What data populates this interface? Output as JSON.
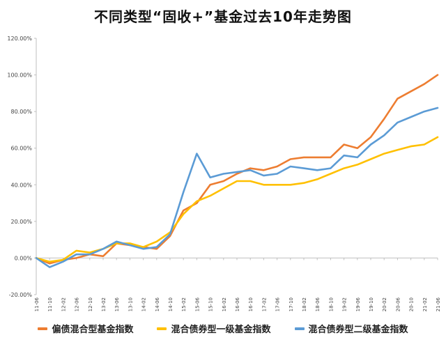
{
  "chart_data": {
    "type": "line",
    "title": "不同类型“固收+”基金过去10年走势图",
    "xlabel": "",
    "ylabel": "",
    "ylim": [
      -0.2,
      1.2
    ],
    "yticks": [
      -0.2,
      0.0,
      0.2,
      0.4,
      0.6,
      0.8,
      1.0,
      1.2
    ],
    "ytick_labels": [
      "-20.00%",
      "0.00%",
      "20.00%",
      "40.00%",
      "60.00%",
      "80.00%",
      "100.00%",
      "120.00%"
    ],
    "x_tick_labels": [
      "11-06",
      "11-10",
      "12-02",
      "12-06",
      "12-10",
      "13-02",
      "13-06",
      "13-10",
      "14-02",
      "14-06",
      "14-10",
      "15-02",
      "15-06",
      "15-10",
      "16-02",
      "16-06",
      "16-10",
      "17-02",
      "17-06",
      "17-10",
      "18-02",
      "18-06",
      "18-10",
      "19-02",
      "19-06",
      "19-10",
      "20-02",
      "20-06",
      "20-10",
      "21-02",
      "21-06"
    ],
    "grid": false,
    "legend_position": "bottom",
    "series": [
      {
        "name": "偏债混合型基金指数",
        "color": "#ED7D31",
        "values": [
          0.0,
          -0.03,
          -0.01,
          0.0,
          0.02,
          0.01,
          0.08,
          0.07,
          0.06,
          0.05,
          0.12,
          0.26,
          0.3,
          0.4,
          0.42,
          0.46,
          0.49,
          0.48,
          0.5,
          0.54,
          0.55,
          0.55,
          0.55,
          0.62,
          0.6,
          0.66,
          0.76,
          0.87,
          0.91,
          0.95,
          1.0
        ]
      },
      {
        "name": "混合债券型一级基金指数",
        "color": "#FFC000",
        "values": [
          0.0,
          -0.02,
          -0.01,
          0.04,
          0.03,
          0.05,
          0.08,
          0.08,
          0.06,
          0.09,
          0.14,
          0.24,
          0.31,
          0.34,
          0.38,
          0.42,
          0.42,
          0.4,
          0.4,
          0.4,
          0.41,
          0.43,
          0.46,
          0.49,
          0.51,
          0.54,
          0.57,
          0.59,
          0.61,
          0.62,
          0.66
        ]
      },
      {
        "name": "混合债券型二级基金指数",
        "color": "#5B9BD5",
        "values": [
          0.0,
          -0.05,
          -0.02,
          0.02,
          0.02,
          0.05,
          0.09,
          0.07,
          0.05,
          0.06,
          0.13,
          0.36,
          0.57,
          0.44,
          0.46,
          0.47,
          0.48,
          0.45,
          0.46,
          0.5,
          0.49,
          0.48,
          0.49,
          0.56,
          0.55,
          0.62,
          0.67,
          0.74,
          0.77,
          0.8,
          0.82
        ]
      }
    ]
  }
}
